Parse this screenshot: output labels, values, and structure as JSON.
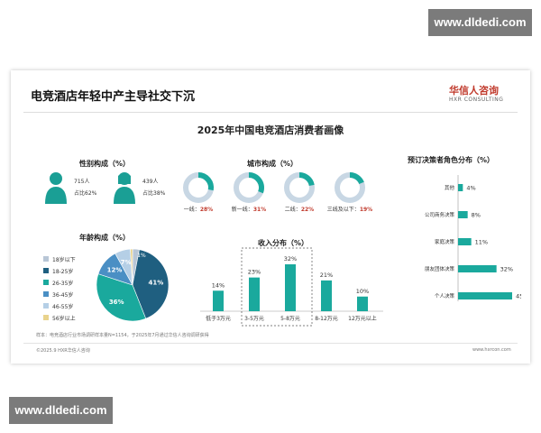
{
  "watermark": "www.dldedi.com",
  "slide": {
    "title": "电竞酒店年轻中产主导社交下沉",
    "brand_cn": "华信人咨询",
    "brand_en": "HXR CONSULTING",
    "subtitle": "2025年中国电竞酒店消费者画像",
    "footnote": "样本：电竞酒店行业市场调研样本量N=1154，于2025年7月通过华信人咨询调研获得",
    "copyright": "©2025.9 HXR华信人咨询",
    "site": "www.hxrcon.com"
  },
  "colors": {
    "teal": "#1aa99d",
    "ring_bg": "#c8d7e4",
    "red": "#c0392b",
    "person": "#1a9f95"
  },
  "chart_data": [
    {
      "type": "pictogram",
      "title": "性别构成（%）",
      "items": [
        {
          "count": "715人",
          "share_label": "占比62%",
          "value": 62,
          "icon": "male-person-icon"
        },
        {
          "count": "439人",
          "share_label": "占比38%",
          "value": 38,
          "icon": "female-person-icon"
        }
      ]
    },
    {
      "type": "donut",
      "title": "城市构成（%）",
      "items": [
        {
          "label": "一线：",
          "value": 28,
          "text": "28%"
        },
        {
          "label": "新一线：",
          "value": 31,
          "text": "31%"
        },
        {
          "label": "二线：",
          "value": 22,
          "text": "22%"
        },
        {
          "label": "三线及以下：",
          "value": 19,
          "text": "19%"
        }
      ]
    },
    {
      "type": "pie",
      "title": "年龄构成（%）",
      "slices": [
        {
          "label": "18岁以下",
          "value": 3,
          "text": "",
          "color": "#b8c6d6"
        },
        {
          "label": "18-25岁",
          "value": 41,
          "text": "41%",
          "color": "#1f5f80"
        },
        {
          "label": "26-35岁",
          "value": 36,
          "text": "36%",
          "color": "#1aa99d"
        },
        {
          "label": "36-45岁",
          "value": 12,
          "text": "12%",
          "color": "#4a8fc4"
        },
        {
          "label": "46-55岁",
          "value": 7,
          "text": "7%",
          "color": "#b5cfe6"
        },
        {
          "label": "56岁以上",
          "value": 1,
          "text": "",
          "color": "#e9d38c"
        }
      ],
      "extra_text": "1%",
      "legend_position": "left"
    },
    {
      "type": "bar",
      "title": "收入分布（%）",
      "categories": [
        "低于3万元",
        "3-5万元",
        "5-8万元",
        "8-12万元",
        "12万元以上"
      ],
      "values": [
        14,
        23,
        32,
        21,
        10
      ],
      "value_labels": [
        "14%",
        "23%",
        "32%",
        "21%",
        "10%"
      ],
      "highlight": [
        "3-5万元",
        "5-8万元"
      ],
      "ylim": [
        0,
        32
      ]
    },
    {
      "type": "bar",
      "orientation": "horizontal",
      "title": "预订决策者角色分布（%）",
      "categories": [
        "其他",
        "公司商务决策",
        "家庭决策",
        "朋友团体决策",
        "个人决策"
      ],
      "values": [
        4,
        8,
        11,
        32,
        45
      ],
      "value_labels": [
        "4%",
        "8%",
        "11%",
        "32%",
        "45%"
      ],
      "xlim": [
        0,
        45
      ]
    }
  ]
}
